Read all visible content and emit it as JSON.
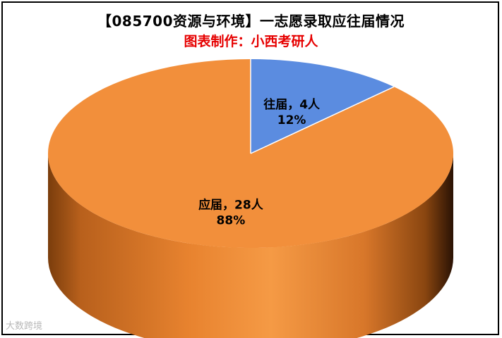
{
  "chart_data": {
    "type": "pie",
    "title": "【085700资源与环境】一志愿录取应往届情况",
    "subtitle": "图表制作：小西考研人",
    "slices": [
      {
        "label": "往届",
        "value": 4,
        "unit": "人",
        "percent": "12%",
        "color": "#5b8ce0"
      },
      {
        "label": "应届",
        "value": 28,
        "unit": "人",
        "percent": "88%",
        "color": "#f28f3b"
      }
    ],
    "style": "3d",
    "legend": "none"
  },
  "watermark": "大数跨境"
}
